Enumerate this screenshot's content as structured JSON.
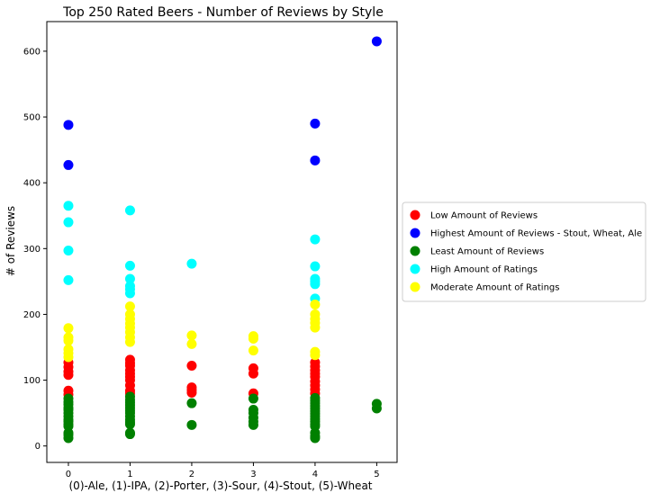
{
  "chart_data": {
    "type": "scatter",
    "title": "Top 250 Rated Beers - Number of Reviews by Style",
    "xlabel": "(0)-Ale, (1)-IPA, (2)-Porter, (3)-Sour, (4)-Stout, (5)-Wheat",
    "ylabel": "# of Reviews",
    "xlim": [
      -0.35,
      5.33
    ],
    "ylim": [
      -25,
      645
    ],
    "x_ticks": [
      0,
      1,
      2,
      3,
      4,
      5
    ],
    "y_ticks": [
      0,
      100,
      200,
      300,
      400,
      500,
      600
    ],
    "grid": false,
    "legend_position": "center-right-outside",
    "series": [
      {
        "name": "Low Amount of Reviews",
        "color": "#ff0000",
        "points": [
          [
            0,
            127
          ],
          [
            0,
            120
          ],
          [
            0,
            113
          ],
          [
            0,
            108
          ],
          [
            0,
            84
          ],
          [
            0,
            78
          ],
          [
            1,
            131
          ],
          [
            1,
            126
          ],
          [
            1,
            122
          ],
          [
            1,
            115
          ],
          [
            1,
            110
          ],
          [
            1,
            105
          ],
          [
            1,
            100
          ],
          [
            1,
            92
          ],
          [
            1,
            84
          ],
          [
            1,
            80
          ],
          [
            2,
            122
          ],
          [
            2,
            89
          ],
          [
            2,
            85
          ],
          [
            2,
            81
          ],
          [
            3,
            118
          ],
          [
            3,
            110
          ],
          [
            3,
            80
          ],
          [
            4,
            127
          ],
          [
            4,
            121
          ],
          [
            4,
            115
          ],
          [
            4,
            110
          ],
          [
            4,
            105
          ],
          [
            4,
            98
          ],
          [
            4,
            92
          ],
          [
            4,
            86
          ],
          [
            4,
            80
          ]
        ]
      },
      {
        "name": "Highest Amount of Reviews - Stout, Wheat, Ale",
        "color": "#0000ff",
        "points": [
          [
            0,
            488
          ],
          [
            0,
            427
          ],
          [
            4,
            490
          ],
          [
            4,
            434
          ],
          [
            5,
            615
          ]
        ]
      },
      {
        "name": "Least Amount of Reviews",
        "color": "#008000",
        "points": [
          [
            0,
            72
          ],
          [
            0,
            67
          ],
          [
            0,
            63
          ],
          [
            0,
            58
          ],
          [
            0,
            55
          ],
          [
            0,
            50
          ],
          [
            0,
            45
          ],
          [
            0,
            40
          ],
          [
            0,
            37
          ],
          [
            0,
            33
          ],
          [
            0,
            30
          ],
          [
            0,
            20
          ],
          [
            0,
            17
          ],
          [
            0,
            12
          ],
          [
            1,
            75
          ],
          [
            1,
            70
          ],
          [
            1,
            66
          ],
          [
            1,
            62
          ],
          [
            1,
            58
          ],
          [
            1,
            54
          ],
          [
            1,
            50
          ],
          [
            1,
            45
          ],
          [
            1,
            40
          ],
          [
            1,
            36
          ],
          [
            1,
            33
          ],
          [
            1,
            20
          ],
          [
            1,
            18
          ],
          [
            2,
            65
          ],
          [
            2,
            32
          ],
          [
            3,
            72
          ],
          [
            3,
            55
          ],
          [
            3,
            50
          ],
          [
            3,
            43
          ],
          [
            3,
            37
          ],
          [
            3,
            32
          ],
          [
            4,
            73
          ],
          [
            4,
            69
          ],
          [
            4,
            65
          ],
          [
            4,
            61
          ],
          [
            4,
            57
          ],
          [
            4,
            53
          ],
          [
            4,
            49
          ],
          [
            4,
            45
          ],
          [
            4,
            41
          ],
          [
            4,
            37
          ],
          [
            4,
            33
          ],
          [
            4,
            30
          ],
          [
            4,
            20
          ],
          [
            4,
            15
          ],
          [
            4,
            12
          ],
          [
            5,
            64
          ],
          [
            5,
            57
          ]
        ]
      },
      {
        "name": "High Amount of Ratings",
        "color": "#00ffff",
        "points": [
          [
            0,
            365
          ],
          [
            0,
            340
          ],
          [
            0,
            297
          ],
          [
            0,
            252
          ],
          [
            1,
            358
          ],
          [
            1,
            274
          ],
          [
            1,
            254
          ],
          [
            1,
            243
          ],
          [
            1,
            238
          ],
          [
            1,
            232
          ],
          [
            2,
            277
          ],
          [
            4,
            314
          ],
          [
            4,
            273
          ],
          [
            4,
            254
          ],
          [
            4,
            250
          ],
          [
            4,
            246
          ],
          [
            4,
            224
          ]
        ]
      },
      {
        "name": "Moderate Amount of Ratings",
        "color": "#ffff00",
        "points": [
          [
            0,
            179
          ],
          [
            0,
            165
          ],
          [
            0,
            160
          ],
          [
            0,
            147
          ],
          [
            0,
            141
          ],
          [
            0,
            135
          ],
          [
            1,
            212
          ],
          [
            1,
            200
          ],
          [
            1,
            193
          ],
          [
            1,
            186
          ],
          [
            1,
            180
          ],
          [
            1,
            173
          ],
          [
            1,
            165
          ],
          [
            1,
            158
          ],
          [
            2,
            168
          ],
          [
            2,
            155
          ],
          [
            3,
            167
          ],
          [
            3,
            163
          ],
          [
            3,
            145
          ],
          [
            4,
            215
          ],
          [
            4,
            200
          ],
          [
            4,
            193
          ],
          [
            4,
            187
          ],
          [
            4,
            180
          ],
          [
            4,
            143
          ],
          [
            4,
            138
          ]
        ]
      }
    ]
  }
}
